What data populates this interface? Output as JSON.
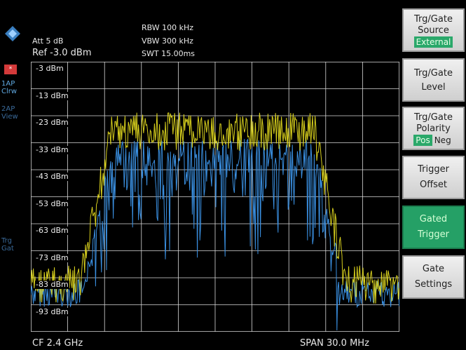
{
  "header": {
    "att": "Att  5 dB",
    "ref": "Ref -3.0 dBm",
    "rbw": "RBW  100 kHz",
    "vbw": "VBW  300 kHz",
    "swt": "SWT  15.00ms"
  },
  "side": {
    "trace_tag": "*",
    "trace_mode": "1AP\nClrw",
    "view_mode": "2AP\nView",
    "trg": "Trg\nGat"
  },
  "levels": [
    "-3 dBm",
    "-13 dBm",
    "-23 dBm",
    "-33 dBm",
    "-43 dBm",
    "-53 dBm",
    "-63 dBm",
    "-73 dBm",
    "-83 dBm",
    "-93 dBm"
  ],
  "footer": {
    "cf": "CF 2.4 GHz",
    "span": "SPAN 30.0 MHz"
  },
  "softkeys": [
    {
      "line1": "Trg/Gate",
      "line2": "Source",
      "opt": "External"
    },
    {
      "line1": "Trg/Gate",
      "line2": "Level"
    },
    {
      "line1": "Trg/Gate",
      "line2": "Polarity",
      "opt_a": "Pos",
      "opt_b": "Neg"
    },
    {
      "line1": "Trigger",
      "line2": "Offset"
    },
    {
      "line1": "Gated",
      "line2": "Trigger"
    },
    {
      "line1": "Gate",
      "line2": "Settings"
    }
  ],
  "colors": {
    "trace1": "#e8e020",
    "trace2": "#3a8fe0",
    "grid": "#d8d8d8",
    "softkey_active": "#25a066"
  }
}
